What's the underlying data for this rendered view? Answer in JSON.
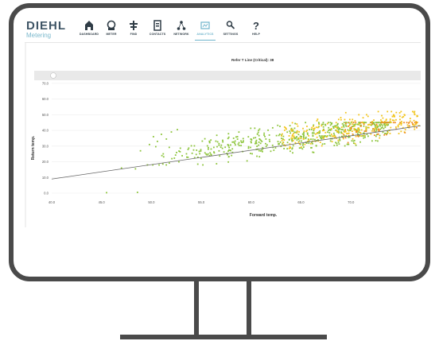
{
  "header": {
    "logo_main": "DIEHL",
    "logo_sub": "Metering",
    "nav": [
      {
        "label": "DASHBOARD",
        "icon": "home-icon",
        "active": false
      },
      {
        "label": "METER",
        "icon": "meter-icon",
        "active": false
      },
      {
        "label": "FIND",
        "icon": "find-icon",
        "active": false
      },
      {
        "label": "CONTACTS",
        "icon": "contacts-icon",
        "active": false
      },
      {
        "label": "NETWORK",
        "icon": "network-icon",
        "active": false
      },
      {
        "label": "ANALYTICS",
        "icon": "analytics-icon",
        "active": true
      },
      {
        "label": "SETTINGS",
        "icon": "settings-icon",
        "active": false
      },
      {
        "label": "HELP",
        "icon": "help-icon",
        "active": false
      }
    ]
  },
  "chart_data": {
    "type": "scatter",
    "title": "Refer T Line (Critical): 38",
    "xlabel": "Forward temp.",
    "ylabel": "Return temp.",
    "xlim": [
      40,
      77
    ],
    "ylim": [
      0,
      75
    ],
    "x_ticks": [
      "40.0",
      "45.0",
      "50.0",
      "55.0",
      "60.0",
      "65.0",
      "70.0"
    ],
    "y_ticks": [
      "0.0",
      "10.0",
      "20.0",
      "30.0",
      "40.0",
      "50.0",
      "60.0",
      "70.0"
    ],
    "grid": true,
    "colors": {
      "green": "#8cc43a",
      "yellow": "#f2c51b",
      "orange": "#f08c1e",
      "line": "#666666"
    },
    "trend_line": {
      "x": [
        40,
        77
      ],
      "y": [
        9,
        43
      ]
    },
    "clusters": [
      {
        "name": "green",
        "x_range": [
          49,
          74
        ],
        "y_range": [
          18,
          45
        ],
        "count": 520
      },
      {
        "name": "yellow",
        "x_range": [
          63,
          77
        ],
        "y_range": [
          20,
          52
        ],
        "count": 230
      },
      {
        "name": "orange",
        "x_range": [
          69,
          77
        ],
        "y_range": [
          22,
          45
        ],
        "count": 60
      }
    ],
    "outliers": [
      {
        "x": 48.4,
        "y": 15.5
      },
      {
        "x": 47.0,
        "y": 16.0
      },
      {
        "x": 48.6,
        "y": 0.5
      },
      {
        "x": 45.5,
        "y": 0.3
      },
      {
        "x": 50.6,
        "y": 33.0
      },
      {
        "x": 51.0,
        "y": 37.5
      },
      {
        "x": 49.8,
        "y": 31.0
      },
      {
        "x": 52.0,
        "y": 39.0
      },
      {
        "x": 48.9,
        "y": 27.0
      },
      {
        "x": 50.2,
        "y": 36.0
      },
      {
        "x": 52.6,
        "y": 40.5
      },
      {
        "x": 51.5,
        "y": 34.5
      }
    ]
  }
}
